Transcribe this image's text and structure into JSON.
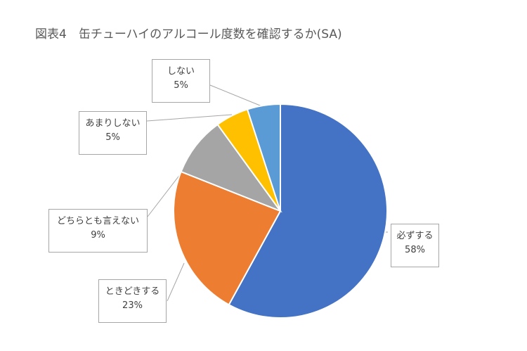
{
  "title": "図表4　缶チューハイのアルコール度数を確認するか(SA)",
  "chart_data": {
    "type": "pie",
    "title": "図表4　缶チューハイのアルコール度数を確認するか(SA)",
    "start_angle_deg": 0,
    "direction": "clockwise",
    "legend": "none",
    "slices": [
      {
        "label": "必ずする",
        "value": 58,
        "display": "58%",
        "color": "#4472C4"
      },
      {
        "label": "ときどきする",
        "value": 23,
        "display": "23%",
        "color": "#ED7D31"
      },
      {
        "label": "どちらとも言えない",
        "value": 9,
        "display": "9%",
        "color": "#A5A5A5"
      },
      {
        "label": "あまりしない",
        "value": 5,
        "display": "5%",
        "color": "#FFC000"
      },
      {
        "label": "しない",
        "value": 5,
        "display": "5%",
        "color": "#5B9BD5"
      }
    ]
  }
}
